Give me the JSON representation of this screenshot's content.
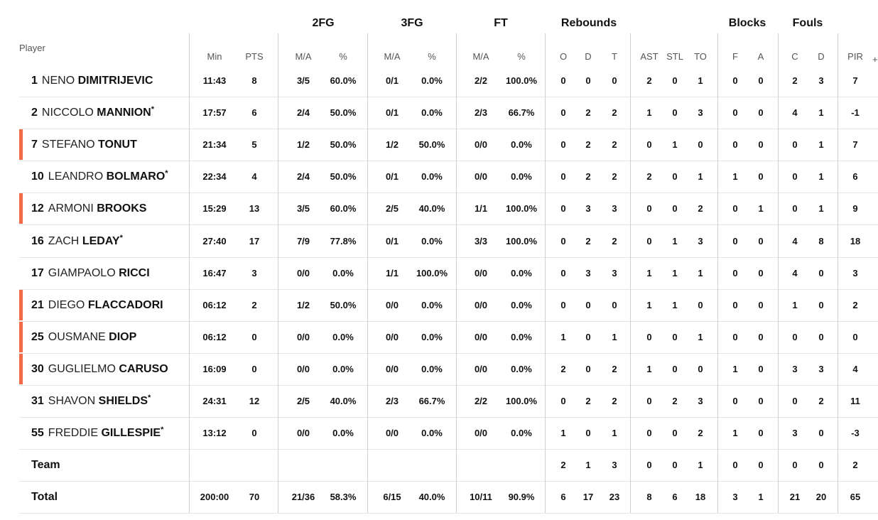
{
  "groups": [
    "2FG",
    "3FG",
    "FT",
    "Rebounds",
    "Blocks",
    "Fouls"
  ],
  "player_header": "Player",
  "subheaders": [
    "Min",
    "PTS",
    "M/A",
    "%",
    "M/A",
    "%",
    "M/A",
    "%",
    "O",
    "D",
    "T",
    "AST",
    "STL",
    "TO",
    "F",
    "A",
    "C",
    "D",
    "PIR"
  ],
  "more_columns": "+",
  "accent_color": "#f06a47",
  "players": [
    {
      "num": "1",
      "first": "NENO",
      "last": "DIMITRIJEVIC",
      "star": "",
      "bar": false,
      "stats": [
        "11:43",
        "8",
        "3/5",
        "60.0%",
        "0/1",
        "0.0%",
        "2/2",
        "100.0%",
        "0",
        "0",
        "0",
        "2",
        "0",
        "1",
        "0",
        "0",
        "2",
        "3",
        "7"
      ]
    },
    {
      "num": "2",
      "first": "NICCOLO",
      "last": "MANNION",
      "star": "*",
      "bar": false,
      "stats": [
        "17:57",
        "6",
        "2/4",
        "50.0%",
        "0/1",
        "0.0%",
        "2/3",
        "66.7%",
        "0",
        "2",
        "2",
        "1",
        "0",
        "3",
        "0",
        "0",
        "4",
        "1",
        "-1"
      ]
    },
    {
      "num": "7",
      "first": "STEFANO",
      "last": "TONUT",
      "star": "",
      "bar": true,
      "stats": [
        "21:34",
        "5",
        "1/2",
        "50.0%",
        "1/2",
        "50.0%",
        "0/0",
        "0.0%",
        "0",
        "2",
        "2",
        "0",
        "1",
        "0",
        "0",
        "0",
        "0",
        "1",
        "7"
      ]
    },
    {
      "num": "10",
      "first": "LEANDRO",
      "last": "BOLMARO",
      "star": "*",
      "bar": false,
      "stats": [
        "22:34",
        "4",
        "2/4",
        "50.0%",
        "0/1",
        "0.0%",
        "0/0",
        "0.0%",
        "0",
        "2",
        "2",
        "2",
        "0",
        "1",
        "1",
        "0",
        "0",
        "1",
        "6"
      ]
    },
    {
      "num": "12",
      "first": "ARMONI",
      "last": "BROOKS",
      "star": "",
      "bar": true,
      "stats": [
        "15:29",
        "13",
        "3/5",
        "60.0%",
        "2/5",
        "40.0%",
        "1/1",
        "100.0%",
        "0",
        "3",
        "3",
        "0",
        "0",
        "2",
        "0",
        "1",
        "0",
        "1",
        "9"
      ]
    },
    {
      "num": "16",
      "first": "ZACH",
      "last": "LEDAY",
      "star": "*",
      "bar": false,
      "stats": [
        "27:40",
        "17",
        "7/9",
        "77.8%",
        "0/1",
        "0.0%",
        "3/3",
        "100.0%",
        "0",
        "2",
        "2",
        "0",
        "1",
        "3",
        "0",
        "0",
        "4",
        "8",
        "18"
      ]
    },
    {
      "num": "17",
      "first": "GIAMPAOLO",
      "last": "RICCI",
      "star": "",
      "bar": false,
      "stats": [
        "16:47",
        "3",
        "0/0",
        "0.0%",
        "1/1",
        "100.0%",
        "0/0",
        "0.0%",
        "0",
        "3",
        "3",
        "1",
        "1",
        "1",
        "0",
        "0",
        "4",
        "0",
        "3"
      ]
    },
    {
      "num": "21",
      "first": "DIEGO",
      "last": "FLACCADORI",
      "star": "",
      "bar": true,
      "stats": [
        "06:12",
        "2",
        "1/2",
        "50.0%",
        "0/0",
        "0.0%",
        "0/0",
        "0.0%",
        "0",
        "0",
        "0",
        "1",
        "1",
        "0",
        "0",
        "0",
        "1",
        "0",
        "2"
      ]
    },
    {
      "num": "25",
      "first": "OUSMANE",
      "last": "DIOP",
      "star": "",
      "bar": true,
      "stats": [
        "06:12",
        "0",
        "0/0",
        "0.0%",
        "0/0",
        "0.0%",
        "0/0",
        "0.0%",
        "1",
        "0",
        "1",
        "0",
        "0",
        "1",
        "0",
        "0",
        "0",
        "0",
        "0"
      ]
    },
    {
      "num": "30",
      "first": "GUGLIELMO",
      "last": "CARUSO",
      "star": "",
      "bar": true,
      "stats": [
        "16:09",
        "0",
        "0/0",
        "0.0%",
        "0/0",
        "0.0%",
        "0/0",
        "0.0%",
        "2",
        "0",
        "2",
        "1",
        "0",
        "0",
        "1",
        "0",
        "3",
        "3",
        "4"
      ]
    },
    {
      "num": "31",
      "first": "SHAVON",
      "last": "SHIELDS",
      "star": "*",
      "bar": false,
      "stats": [
        "24:31",
        "12",
        "2/5",
        "40.0%",
        "2/3",
        "66.7%",
        "2/2",
        "100.0%",
        "0",
        "2",
        "2",
        "0",
        "2",
        "3",
        "0",
        "0",
        "0",
        "2",
        "11"
      ]
    },
    {
      "num": "55",
      "first": "FREDDIE",
      "last": "GILLESPIE",
      "star": "*",
      "bar": false,
      "stats": [
        "13:12",
        "0",
        "0/0",
        "0.0%",
        "0/0",
        "0.0%",
        "0/0",
        "0.0%",
        "1",
        "0",
        "1",
        "0",
        "0",
        "2",
        "1",
        "0",
        "3",
        "0",
        "-3"
      ]
    }
  ],
  "team": {
    "label": "Team",
    "stats": [
      "",
      "",
      "",
      "",
      "",
      "",
      "",
      "",
      "2",
      "1",
      "3",
      "0",
      "0",
      "1",
      "0",
      "0",
      "0",
      "0",
      "2"
    ]
  },
  "total": {
    "label": "Total",
    "stats": [
      "200:00",
      "70",
      "21/36",
      "58.3%",
      "6/15",
      "40.0%",
      "10/11",
      "90.9%",
      "6",
      "17",
      "23",
      "8",
      "6",
      "18",
      "3",
      "1",
      "21",
      "20",
      "65"
    ]
  }
}
